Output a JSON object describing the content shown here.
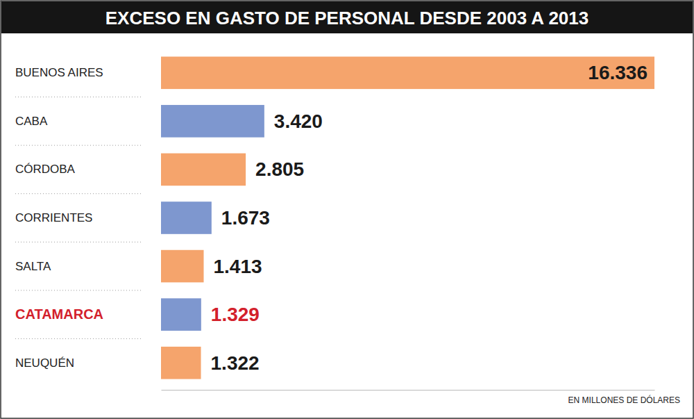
{
  "chart_data": {
    "type": "bar",
    "orientation": "horizontal",
    "title": "EXCESO EN GASTO DE PERSONAL DESDE 2003 A 2013",
    "categories": [
      "BUENOS AIRES",
      "CABA",
      "CÓRDOBA",
      "CORRIENTES",
      "SALTA",
      "CATAMARCA",
      "NEUQUÉN"
    ],
    "values": [
      16336,
      3420,
      2805,
      1673,
      1413,
      1329,
      1322
    ],
    "value_labels": [
      "16.336",
      "3.420",
      "2.805",
      "1.673",
      "1.413",
      "1.329",
      "1.322"
    ],
    "colors": [
      "#f5a46c",
      "#7e97cf",
      "#f5a46c",
      "#7e97cf",
      "#f5a46c",
      "#7e97cf",
      "#f5a46c"
    ],
    "xlim": [
      0,
      16336
    ],
    "data_labels": true,
    "tick_labels": "y",
    "annotations": [
      "EN MILLONES DE DÓLARES"
    ]
  }
}
